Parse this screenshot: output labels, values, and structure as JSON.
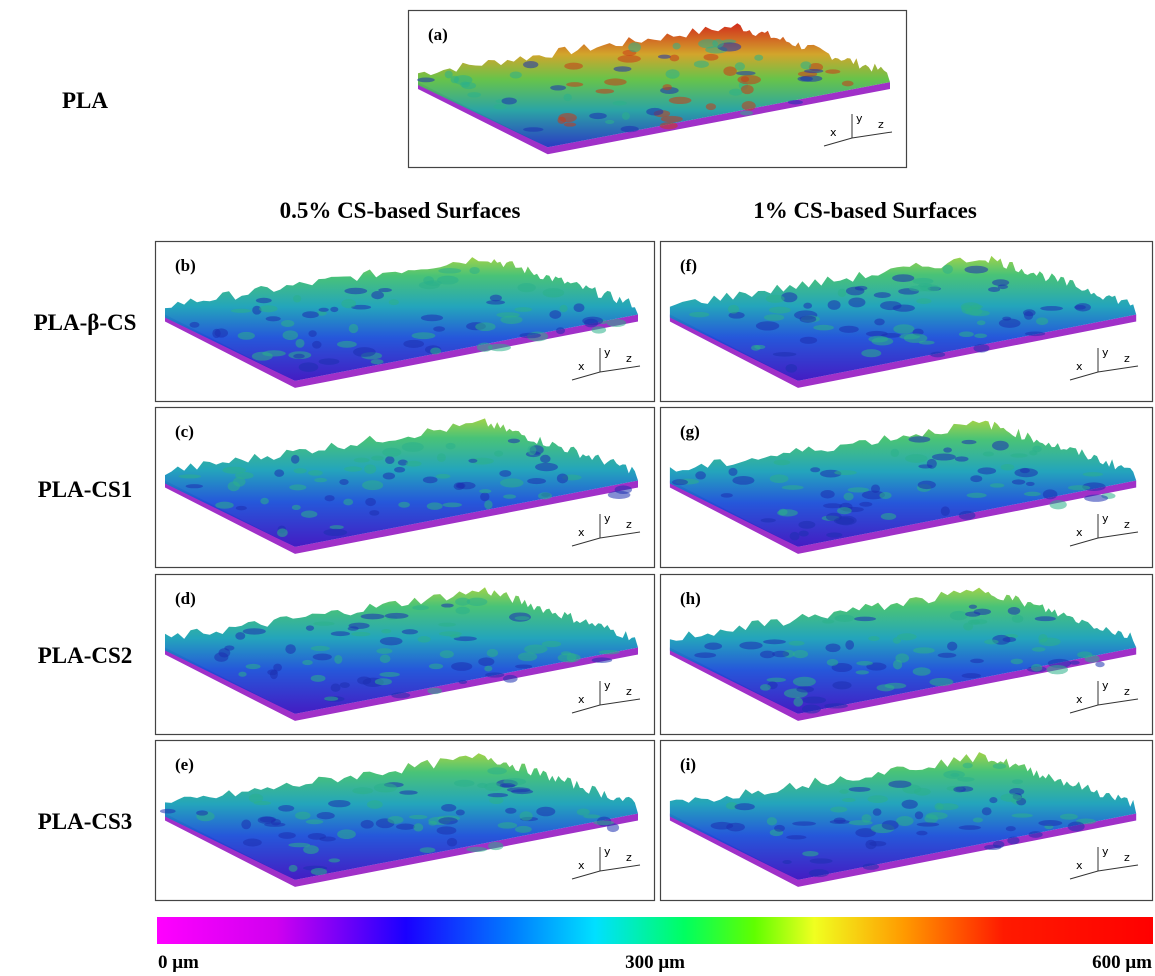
{
  "row_labels": [
    "PLA",
    "PLA-β-CS",
    "PLA-CS1",
    "PLA-CS2",
    "PLA-CS3"
  ],
  "column_headers": [
    "0.5% CS-based Surfaces",
    "1% CS-based Surfaces"
  ],
  "panels": [
    {
      "label": "(a)"
    },
    {
      "label": "(b)"
    },
    {
      "label": "(c)"
    },
    {
      "label": "(d)"
    },
    {
      "label": "(e)"
    },
    {
      "label": "(f)"
    },
    {
      "label": "(g)"
    },
    {
      "label": "(h)"
    },
    {
      "label": "(i)"
    }
  ],
  "axis_labels": {
    "x": "x",
    "y": "y",
    "z": "z"
  },
  "color_scale": {
    "labels": [
      "0 μm",
      "300 μm",
      "600 μm"
    ]
  }
}
